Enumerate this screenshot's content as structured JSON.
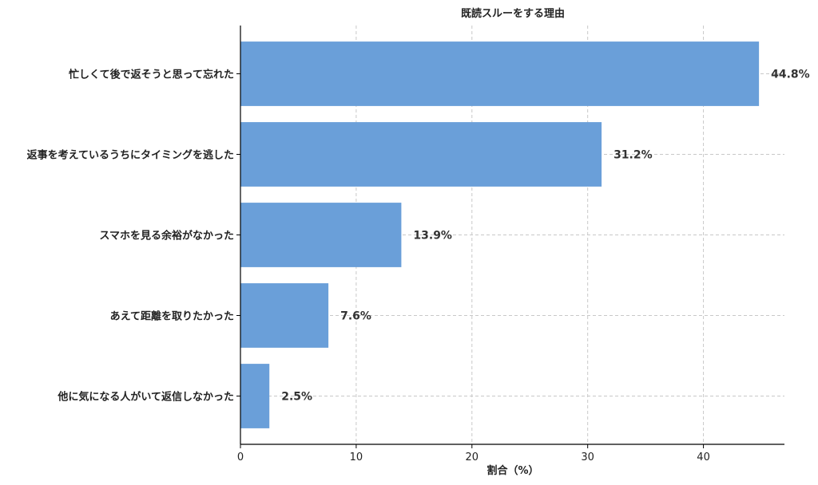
{
  "chart_data": {
    "type": "bar",
    "orientation": "horizontal",
    "title": "既読スルーをする理由",
    "xlabel": "割合（%）",
    "ylabel": "",
    "categories": [
      "忙しくて後で返そうと思って忘れた",
      "返事を考えているうちにタイミングを逃した",
      "スマホを見る余裕がなかった",
      "あえて距離を取りたかった",
      "他に気になる人がいて返信しなかった"
    ],
    "values": [
      44.8,
      31.2,
      13.9,
      7.6,
      2.5
    ],
    "value_labels": [
      "44.8%",
      "31.2%",
      "13.9%",
      "7.6%",
      "2.5%"
    ],
    "xlim": [
      0,
      47
    ],
    "xticks": [
      0,
      10,
      20,
      30,
      40
    ],
    "grid": true,
    "bar_color": "#6a9fd9"
  }
}
